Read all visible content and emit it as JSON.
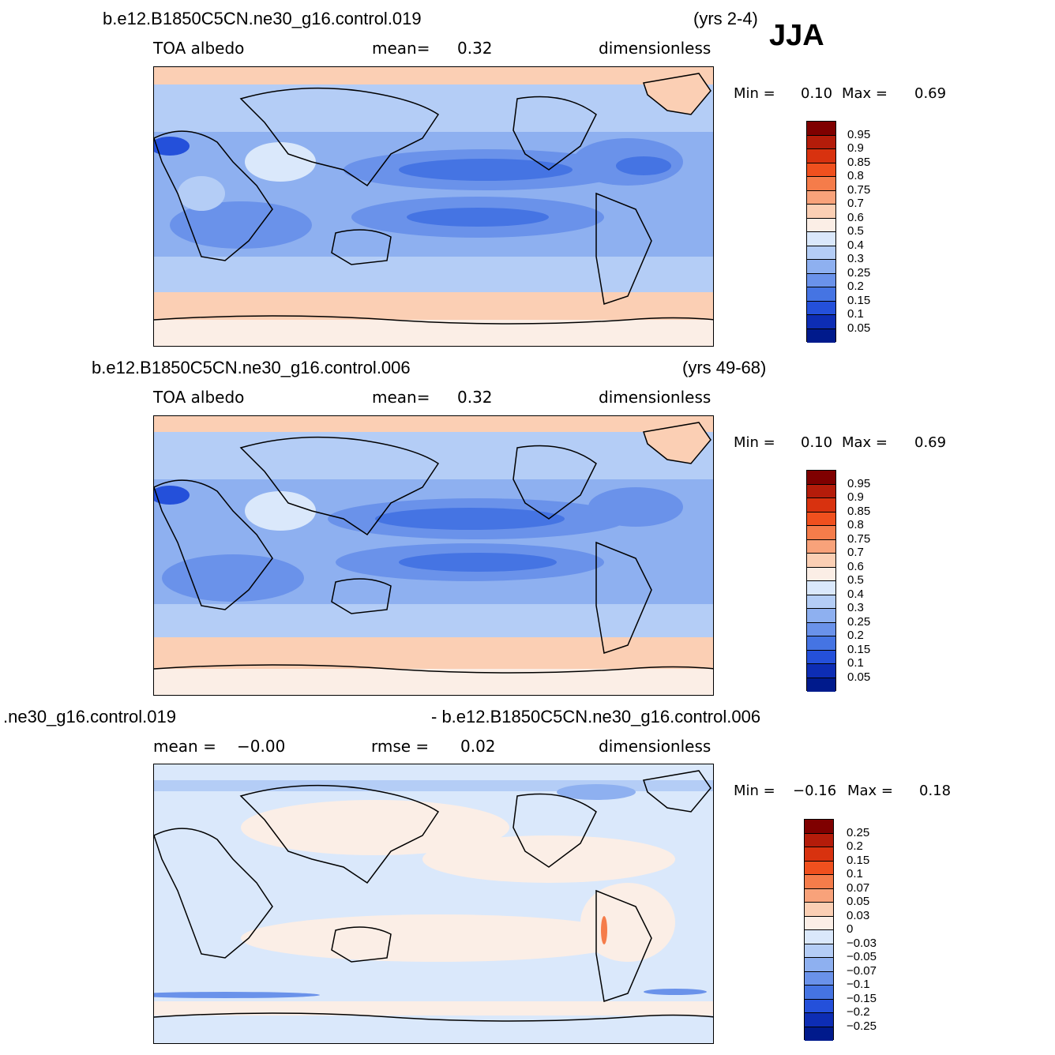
{
  "season": "JJA",
  "panels": [
    {
      "case": "b.e12.B1850C5CN.ne30_g16.control.019",
      "years": "(yrs 2-4)",
      "variable": "TOA  albedo",
      "stat_label": "mean=",
      "stat_value": "0.32",
      "units": "dimensionless",
      "min_label": "Min =",
      "min_value": "0.10",
      "max_label": "Max =",
      "max_value": "0.69",
      "colorbar_labels": [
        "0.95",
        "0.9",
        "0.85",
        "0.8",
        "0.75",
        "0.7",
        "0.6",
        "0.5",
        "0.4",
        "0.3",
        "0.25",
        "0.2",
        "0.15",
        "0.1",
        "0.05"
      ]
    },
    {
      "case": "b.e12.B1850C5CN.ne30_g16.control.006",
      "years": "(yrs 49-68)",
      "variable": "TOA  albedo",
      "stat_label": "mean=",
      "stat_value": "0.32",
      "units": "dimensionless",
      "min_label": "Min =",
      "min_value": "0.10",
      "max_label": "Max =",
      "max_value": "0.69",
      "colorbar_labels": [
        "0.95",
        "0.9",
        "0.85",
        "0.8",
        "0.75",
        "0.7",
        "0.6",
        "0.5",
        "0.4",
        "0.3",
        "0.25",
        "0.2",
        "0.15",
        "0.1",
        "0.05"
      ]
    },
    {
      "case_left": ".ne30_g16.control.019",
      "case_right": "- b.e12.B1850C5CN.ne30_g16.control.006",
      "stat_label": "mean =",
      "stat_value": "−0.00",
      "rmse_label": "rmse =",
      "rmse_value": "0.02",
      "units": "dimensionless",
      "min_label": "Min =",
      "min_value": "−0.16",
      "max_label": "Max =",
      "max_value": "0.18",
      "colorbar_labels": [
        "0.25",
        "0.2",
        "0.15",
        "0.1",
        "0.07",
        "0.05",
        "0.03",
        "0",
        "−0.03",
        "−0.05",
        "−0.07",
        "−0.1",
        "−0.15",
        "−0.2",
        "−0.25"
      ]
    }
  ],
  "colors": {
    "abs_scale": [
      "#7f0000",
      "#b41c0a",
      "#d8320f",
      "#f0501e",
      "#f57c4a",
      "#f8a27a",
      "#fbcfb4",
      "#fbeee6",
      "#dae8fb",
      "#b4cdf6",
      "#8eb0f0",
      "#6a92ea",
      "#4574e3",
      "#2450da",
      "#0d2db4",
      "#001a8c"
    ],
    "diff_scale": [
      "#7f0000",
      "#b41c0a",
      "#d8320f",
      "#f0501e",
      "#f57c4a",
      "#f8a27a",
      "#fbcfb4",
      "#fbeee6",
      "#dae8fb",
      "#b4cdf6",
      "#8eb0f0",
      "#6a92ea",
      "#4574e3",
      "#2450da",
      "#0d2db4",
      "#001a8c"
    ]
  }
}
